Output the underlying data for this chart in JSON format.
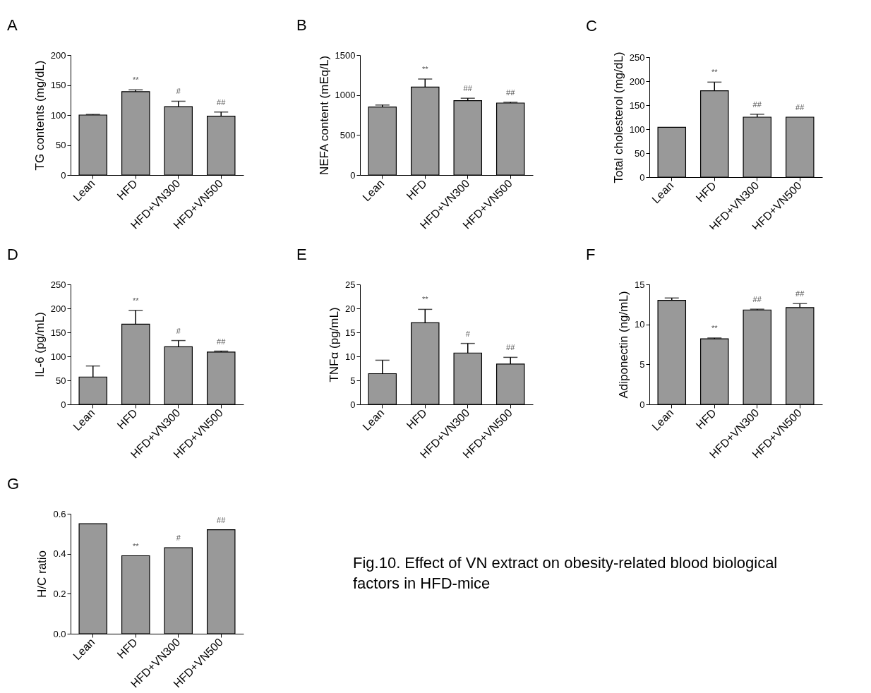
{
  "chart_data": [
    {
      "type": "bar",
      "title": "A",
      "ylabel": "TG contents (mg/dL)",
      "categories": [
        "Lean",
        "HFD",
        "HFD+VN300",
        "HFD+VN500"
      ],
      "values": [
        100,
        139,
        114,
        98
      ],
      "errors": [
        [
          100,
          101
        ],
        [
          139,
          142
        ],
        [
          114,
          123
        ],
        [
          98,
          105
        ]
      ],
      "color": "#999999",
      "ylim": [
        0,
        200
      ],
      "yticks": [
        0,
        50,
        100,
        150,
        200
      ],
      "annotations": [
        {
          "text": "**",
          "x": "HFD",
          "y": 142
        },
        {
          "text": "#",
          "x": "HFD+VN300",
          "y": 123
        },
        {
          "text": "##",
          "x": "HFD+VN500",
          "y": 105
        }
      ]
    },
    {
      "type": "bar",
      "title": "B",
      "ylabel": "NEFA content (mEq/L)",
      "categories": [
        "Lean",
        "HFD",
        "HFD+VN300",
        "HFD+VN500"
      ],
      "values": [
        850,
        1100,
        930,
        900
      ],
      "errors": [
        [
          850,
          875
        ],
        [
          1100,
          1200
        ],
        [
          930,
          960
        ],
        [
          900,
          910
        ]
      ],
      "color": "#999999",
      "ylim": [
        0,
        1500
      ],
      "yticks": [
        0,
        500,
        1000,
        1500
      ],
      "annotations": [
        {
          "text": "**",
          "x": "HFD",
          "y": 1200
        },
        {
          "text": "##",
          "x": "HFD+VN300",
          "y": 960
        },
        {
          "text": "##",
          "x": "HFD+VN500",
          "y": 910
        }
      ]
    },
    {
      "type": "bar",
      "title": "C",
      "ylabel": "Total cholesterol (mg/dL)",
      "categories": [
        "Lean",
        "HFD",
        "HFD+VN300",
        "HFD+VN500"
      ],
      "values": [
        104,
        180,
        125,
        125
      ],
      "errors": [
        null,
        [
          180,
          198
        ],
        [
          125,
          131
        ],
        null
      ],
      "color": "#999999",
      "ylim": [
        0,
        250
      ],
      "yticks": [
        0,
        50,
        100,
        150,
        200,
        250
      ],
      "annotations": [
        {
          "text": "**",
          "x": "HFD",
          "y": 198
        },
        {
          "text": "##",
          "x": "HFD+VN300",
          "y": 131
        },
        {
          "text": "##",
          "x": "HFD+VN500",
          "y": 125
        }
      ]
    },
    {
      "type": "bar",
      "title": "D",
      "ylabel": "IL-6 (pg/mL)",
      "categories": [
        "Lean",
        "HFD",
        "HFD+VN300",
        "HFD+VN500"
      ],
      "values": [
        57,
        167,
        120,
        109
      ],
      "errors": [
        [
          57,
          80
        ],
        [
          167,
          196
        ],
        [
          120,
          133
        ],
        [
          109,
          111
        ]
      ],
      "color": "#999999",
      "ylim": [
        0,
        250
      ],
      "yticks": [
        0,
        50,
        100,
        150,
        200,
        250
      ],
      "annotations": [
        {
          "text": "**",
          "x": "HFD",
          "y": 196
        },
        {
          "text": "#",
          "x": "HFD+VN300",
          "y": 133
        },
        {
          "text": "##",
          "x": "HFD+VN500",
          "y": 111
        }
      ]
    },
    {
      "type": "bar",
      "title": "E",
      "ylabel": "TNFα (pg/mL)",
      "categories": [
        "Lean",
        "HFD",
        "HFD+VN300",
        "HFD+VN500"
      ],
      "values": [
        6.4,
        17,
        10.7,
        8.4
      ],
      "errors": [
        [
          6.4,
          9.2
        ],
        [
          17,
          19.8
        ],
        [
          10.7,
          12.7
        ],
        [
          8.4,
          9.8
        ]
      ],
      "color": "#999999",
      "ylim": [
        0,
        25
      ],
      "yticks": [
        0,
        5,
        10,
        15,
        20,
        25
      ],
      "annotations": [
        {
          "text": "**",
          "x": "HFD",
          "y": 19.8
        },
        {
          "text": "#",
          "x": "HFD+VN300",
          "y": 12.7
        },
        {
          "text": "##",
          "x": "HFD+VN500",
          "y": 9.8
        }
      ]
    },
    {
      "type": "bar",
      "title": "F",
      "ylabel": "Adiponectin (ng/mL)",
      "categories": [
        "Lean",
        "HFD",
        "HFD+VN300",
        "HFD+VN500"
      ],
      "values": [
        13,
        8.2,
        11.8,
        12.1
      ],
      "errors": [
        [
          13,
          13.3
        ],
        [
          8.2,
          8.3
        ],
        [
          11.8,
          11.9
        ],
        [
          12.1,
          12.6
        ]
      ],
      "color": "#999999",
      "ylim": [
        0,
        15
      ],
      "yticks": [
        0,
        5,
        10,
        15
      ],
      "annotations": [
        {
          "text": "**",
          "x": "HFD",
          "y": 8.3
        },
        {
          "text": "##",
          "x": "HFD+VN300",
          "y": 11.9
        },
        {
          "text": "##",
          "x": "HFD+VN500",
          "y": 12.6
        }
      ]
    },
    {
      "type": "bar",
      "title": "G",
      "ylabel": "H/C ratio",
      "categories": [
        "Lean",
        "HFD",
        "HFD+VN300",
        "HFD+VN500"
      ],
      "values": [
        0.55,
        0.39,
        0.43,
        0.52
      ],
      "color": "#999999",
      "ylim": [
        0,
        0.6
      ],
      "yticks": [
        {
          "value": 0,
          "label": "0.0"
        },
        0.2,
        0.4,
        0.6
      ],
      "annotations": [
        {
          "text": "**",
          "x": "HFD",
          "y": 0.39
        },
        {
          "text": "#",
          "x": "HFD+VN300",
          "y": 0.43
        },
        {
          "text": "##",
          "x": "HFD+VN500",
          "y": 0.52
        },
        "Fig.10. Effect of VN extract on obesity-related blood biological factors in HFD-mice"
      ]
    }
  ]
}
